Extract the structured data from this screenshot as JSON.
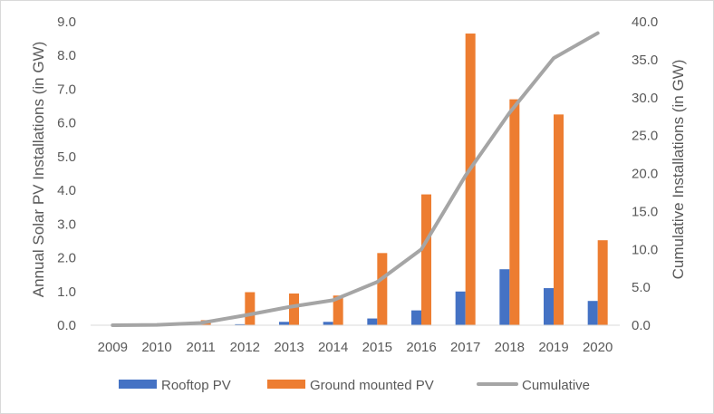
{
  "chart_data": {
    "type": "bar",
    "categories": [
      "2009",
      "2010",
      "2011",
      "2012",
      "2013",
      "2014",
      "2015",
      "2016",
      "2017",
      "2018",
      "2019",
      "2020"
    ],
    "series": [
      {
        "name": "Rooftop PV",
        "axis": "left",
        "kind": "bar",
        "color": "#4472c4",
        "values": [
          0.0,
          0.01,
          0.02,
          0.03,
          0.1,
          0.1,
          0.2,
          0.44,
          1.0,
          1.66,
          1.1,
          0.72
        ]
      },
      {
        "name": "Ground mounted PV",
        "axis": "left",
        "kind": "bar",
        "color": "#ed7d31",
        "values": [
          0.0,
          0.02,
          0.15,
          0.98,
          0.94,
          0.88,
          2.14,
          3.88,
          8.65,
          6.7,
          6.25,
          2.52
        ]
      },
      {
        "name": "Cumulative",
        "axis": "right",
        "kind": "line",
        "color": "#a5a5a5",
        "values": [
          0.0,
          0.05,
          0.3,
          1.3,
          2.4,
          3.3,
          5.7,
          10.0,
          19.7,
          28.0,
          35.2,
          38.5
        ]
      }
    ],
    "left_axis": {
      "label": "Annual Solar PV Installations (in GW)",
      "ylim": [
        0,
        9
      ],
      "ticks": [
        "0.0",
        "1.0",
        "2.0",
        "3.0",
        "4.0",
        "5.0",
        "6.0",
        "7.0",
        "8.0",
        "9.0"
      ]
    },
    "right_axis": {
      "label": "Cumulative Installations (in GW)",
      "ylim": [
        0,
        40
      ],
      "ticks": [
        "0.0",
        "5.0",
        "10.0",
        "15.0",
        "20.0",
        "25.0",
        "30.0",
        "35.0",
        "40.0"
      ]
    },
    "xlabel": "",
    "grid": false,
    "legend_position": "bottom-center"
  }
}
